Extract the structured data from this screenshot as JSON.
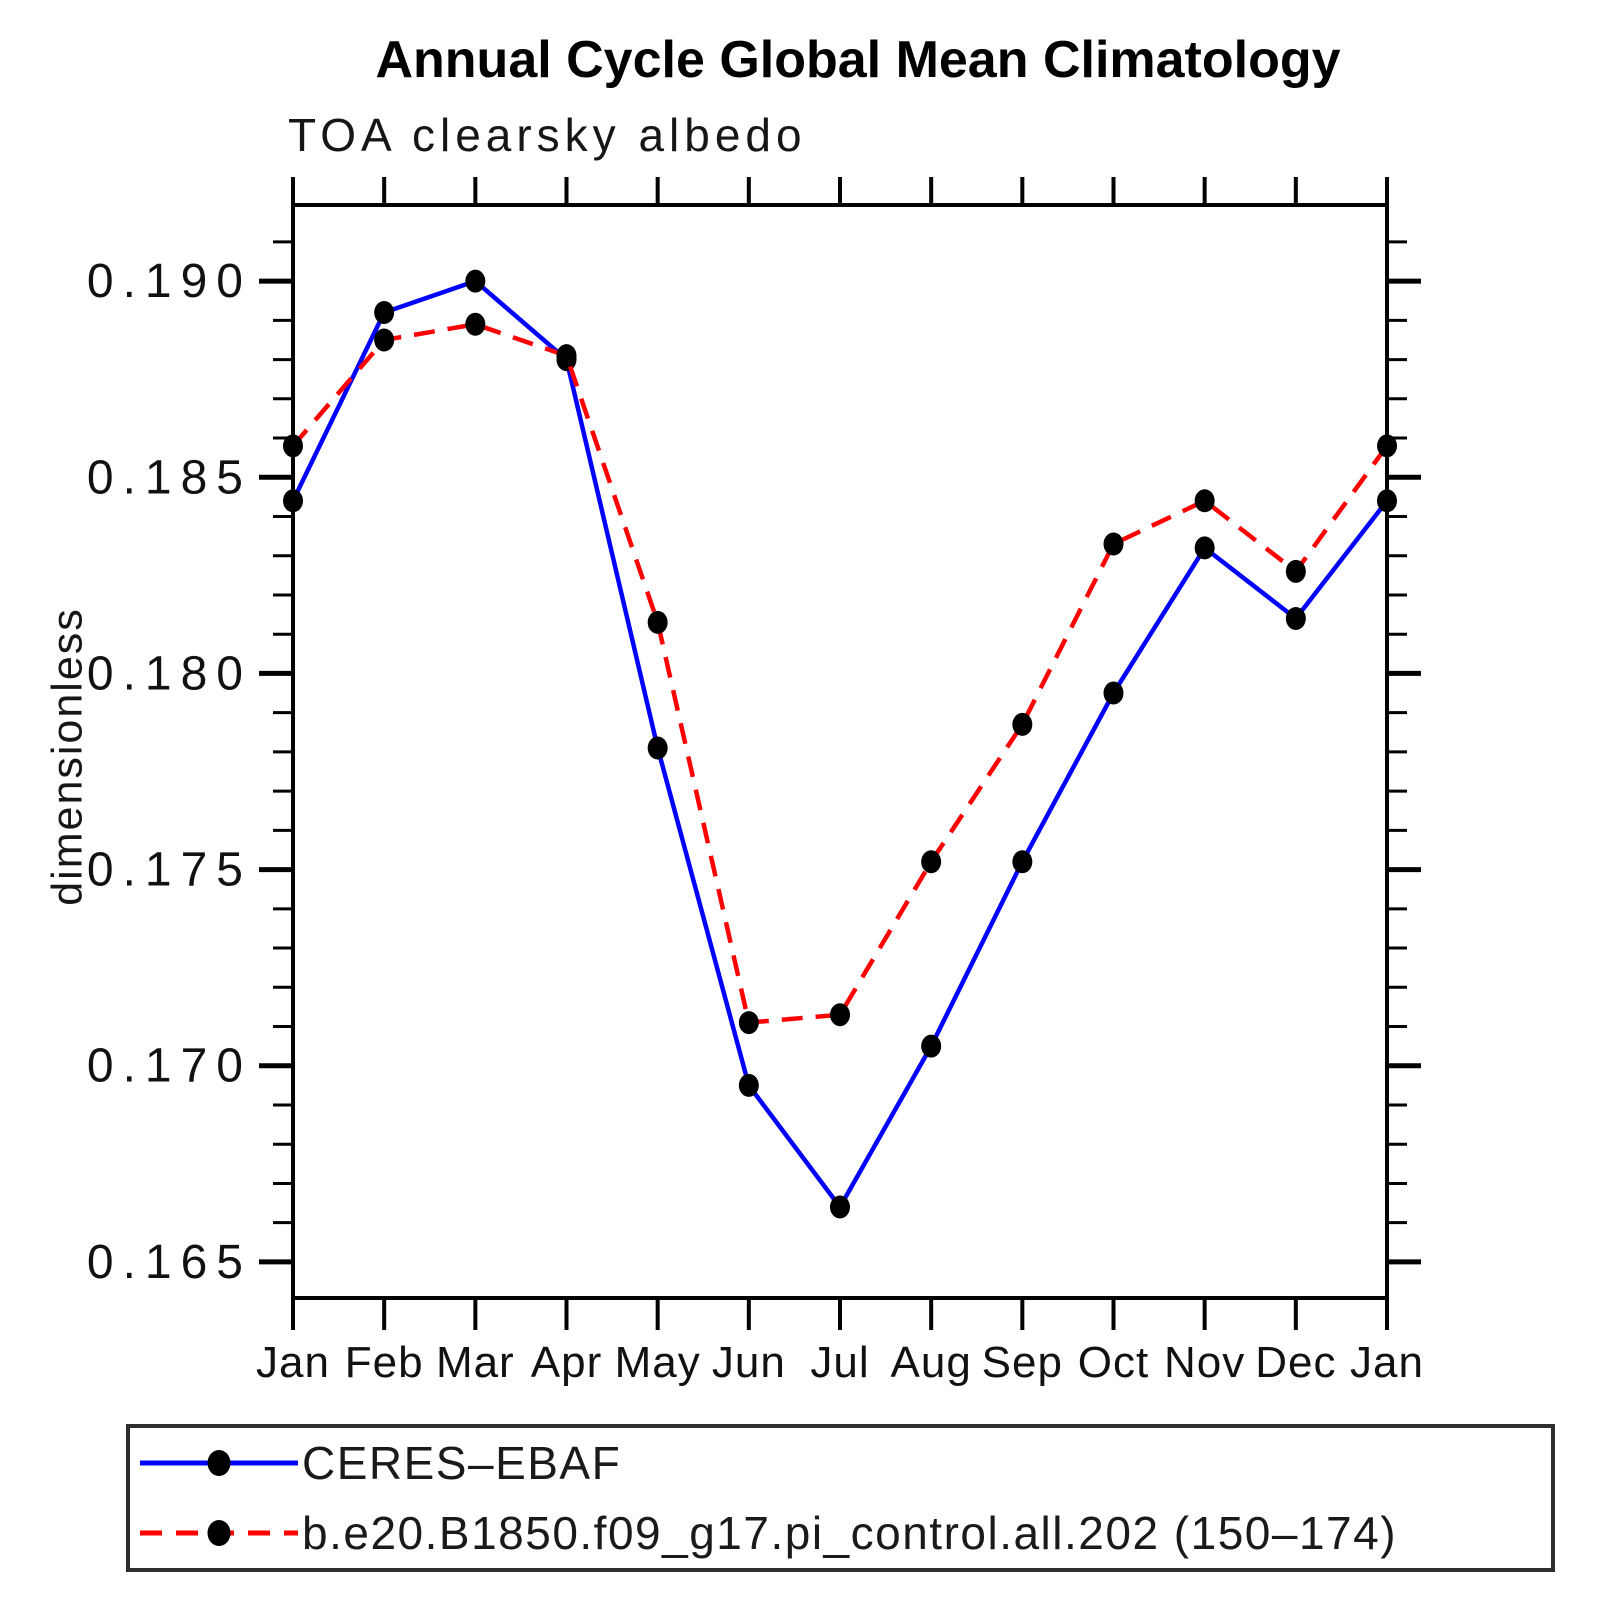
{
  "chart_data": {
    "type": "line",
    "title": "Annual Cycle Global Mean Climatology",
    "subtitle": "TOA clearsky albedo",
    "xlabel": "",
    "ylabel": "dimensionless",
    "x_tick_labels": [
      "Jan",
      "Feb",
      "Mar",
      "Apr",
      "May",
      "Jun",
      "Jul",
      "Aug",
      "Sep",
      "Oct",
      "Nov",
      "Dec",
      "Jan"
    ],
    "ylim": [
      0.16408,
      0.19194
    ],
    "y_major_ticks": [
      0.165,
      0.17,
      0.175,
      0.18,
      0.185,
      0.19
    ],
    "y_major_tick_labels": [
      "0.165",
      "0.170",
      "0.175",
      "0.180",
      "0.185",
      "0.190"
    ],
    "y_minor_tick_step": 0.001,
    "grid": false,
    "legend_position": "bottom",
    "series": [
      {
        "name": "CERES–EBAF",
        "color": "#0000ff",
        "line_style": "solid",
        "marker": "filled-circle",
        "marker_color": "#000000",
        "values": [
          0.1844,
          0.1892,
          0.19,
          0.188,
          0.1781,
          0.1695,
          0.1664,
          0.1705,
          0.1752,
          0.1795,
          0.1832,
          0.1814,
          0.1844
        ]
      },
      {
        "name": "b.e20.B1850.f09_g17.pi_control.all.202 (150–174)",
        "color": "#ff0000",
        "line_style": "dashed",
        "marker": "filled-circle",
        "marker_color": "#000000",
        "values": [
          0.1858,
          0.1885,
          0.1889,
          0.1881,
          0.1813,
          0.1711,
          0.1713,
          0.1752,
          0.1787,
          0.1833,
          0.1844,
          0.1826,
          0.1858
        ]
      }
    ]
  }
}
